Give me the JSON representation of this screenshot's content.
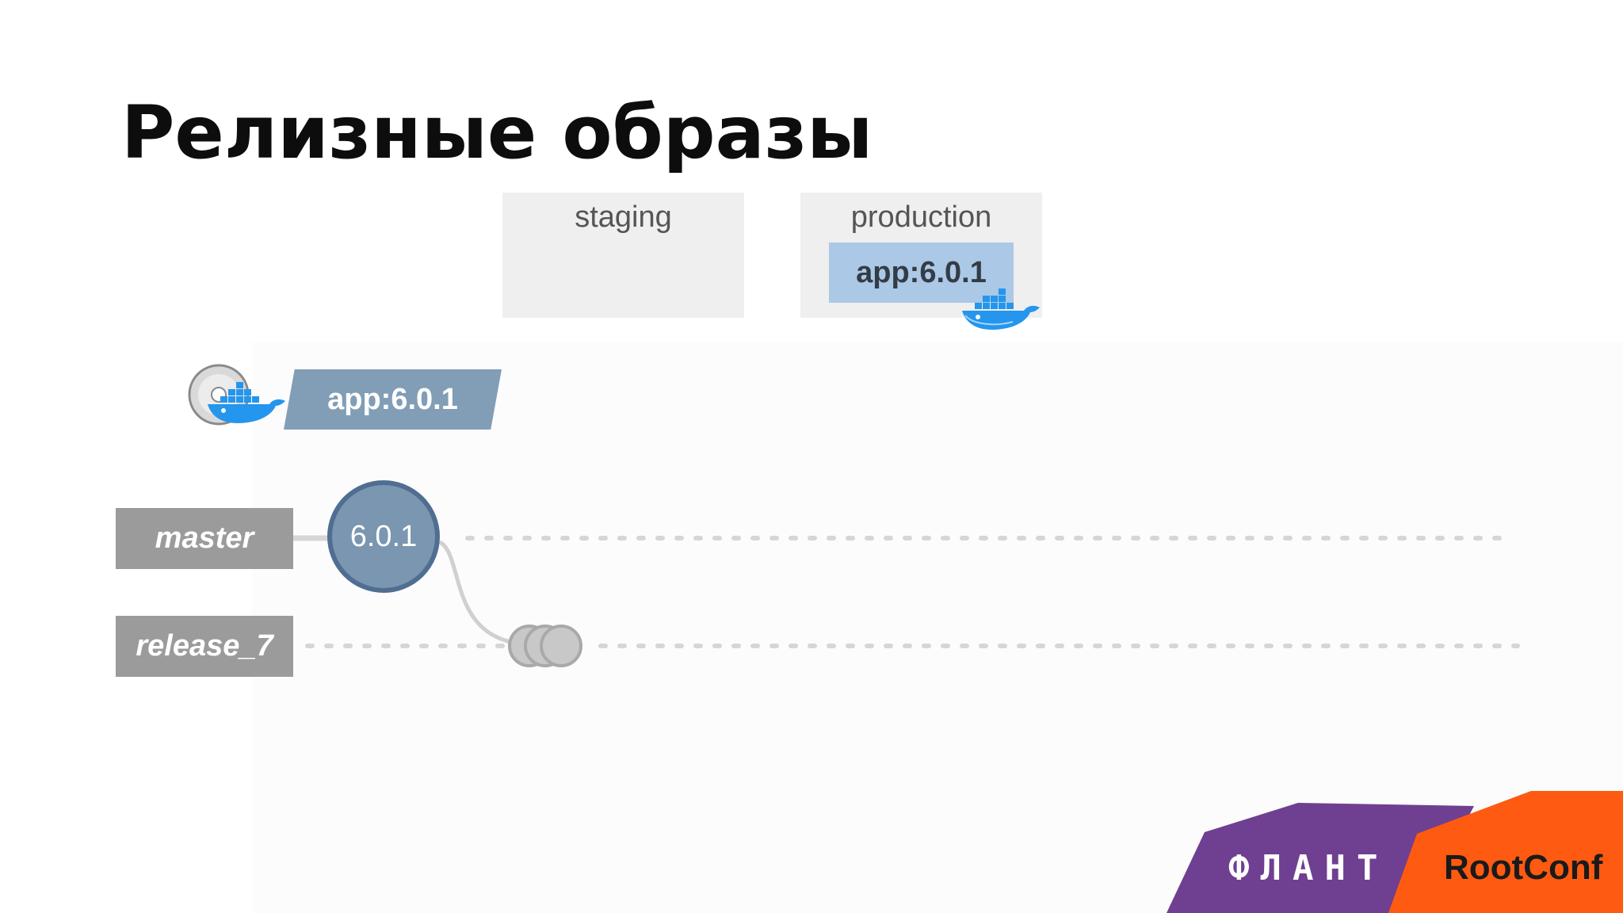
{
  "slide": {
    "title": "Релизные образы"
  },
  "environments": [
    {
      "name": "staging",
      "deployed": null
    },
    {
      "name": "production",
      "deployed": "app:6.0.1"
    }
  ],
  "image_tag": "app:6.0.1",
  "branches": [
    {
      "name": "master"
    },
    {
      "name": "release_7"
    }
  ],
  "release_tag": "6.0.1",
  "branding": {
    "company": "ФЛАНТ",
    "conference": "RootConf",
    "company_color": "#6f3f91",
    "conference_color": "#ff5a11"
  },
  "colors": {
    "env_box": "#efefef",
    "deployed_image": "#abc8e6",
    "image_banner": "#829eb7",
    "branch_label": "#9b9b9b",
    "release_tag_fill": "#7a96b0",
    "release_tag_border": "#4f6e92",
    "commit_gray": "#c8c8c8",
    "docker_blue": "#2496ed"
  },
  "icons": [
    "docker-whale-icon",
    "disc-icon"
  ]
}
